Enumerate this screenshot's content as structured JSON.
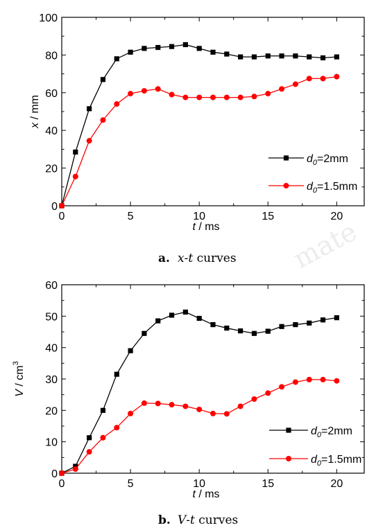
{
  "chart_data": [
    {
      "type": "line",
      "caption_letter": "a.",
      "caption_text": "x-t curves",
      "xlabel_var": "t",
      "xlabel_unit": " / ms",
      "ylabel_var": "x",
      "ylabel_unit": " / mm",
      "xlim": [
        0,
        22
      ],
      "ylim": [
        0,
        100
      ],
      "xticks": [
        0,
        5,
        10,
        15,
        20
      ],
      "yticks": [
        0,
        20,
        40,
        60,
        80,
        100
      ],
      "legend_placement": "lower-right",
      "series": [
        {
          "legend_sym": "d",
          "legend_sub": "0",
          "legend_rest": "=2mm",
          "color": "#000000",
          "marker": "square",
          "x": [
            0,
            1,
            2,
            3,
            4,
            5,
            6,
            7,
            8,
            9,
            10,
            11,
            12,
            13,
            14,
            15,
            16,
            17,
            18,
            19,
            20
          ],
          "y": [
            0,
            28.5,
            51.5,
            67,
            78,
            81.5,
            83.5,
            84,
            84.5,
            85.5,
            83.5,
            81.5,
            80.5,
            79,
            79,
            79.5,
            79.5,
            79.5,
            79,
            78.5,
            79
          ]
        },
        {
          "legend_sym": "d",
          "legend_sub": "0",
          "legend_rest": "=1.5mm",
          "color": "#ff0000",
          "marker": "circle",
          "x": [
            0,
            1,
            2,
            3,
            4,
            5,
            6,
            7,
            8,
            9,
            10,
            11,
            12,
            13,
            14,
            15,
            16,
            17,
            18,
            19,
            20
          ],
          "y": [
            0,
            15.5,
            34.5,
            45.5,
            54,
            59.5,
            61,
            62,
            59,
            57.5,
            57.5,
            57.5,
            57.5,
            57.5,
            58,
            59.5,
            62,
            64.5,
            67.5,
            67.5,
            68.5
          ]
        }
      ]
    },
    {
      "type": "line",
      "caption_letter": "b.",
      "caption_text": "V-t curves",
      "xlabel_var": "t",
      "xlabel_unit": " / ms",
      "ylabel_var": "V",
      "ylabel_unit": " / cm",
      "ylabel_sup": "3",
      "xlim": [
        0,
        22
      ],
      "ylim": [
        0,
        60
      ],
      "xticks": [
        0,
        5,
        10,
        15,
        20
      ],
      "yticks": [
        0,
        10,
        20,
        30,
        40,
        50,
        60
      ],
      "legend_placement": "lower-right",
      "series": [
        {
          "legend_sym": "d",
          "legend_sub": "0",
          "legend_rest": "=2mm",
          "color": "#000000",
          "marker": "square",
          "x": [
            0,
            1,
            2,
            3,
            4,
            5,
            6,
            7,
            8,
            9,
            10,
            11,
            12,
            13,
            14,
            15,
            16,
            17,
            18,
            19,
            20
          ],
          "y": [
            0,
            2.2,
            11.3,
            20,
            31.5,
            39,
            44.5,
            48.5,
            50.3,
            51.3,
            49.3,
            47.3,
            46.2,
            45.3,
            44.5,
            45.2,
            46.7,
            47.3,
            47.8,
            48.8,
            49.5
          ]
        },
        {
          "legend_sym": "d",
          "legend_sub": "0",
          "legend_rest": "=1.5mm",
          "color": "#ff0000",
          "marker": "circle",
          "x": [
            0,
            1,
            2,
            3,
            4,
            5,
            6,
            7,
            8,
            9,
            10,
            11,
            12,
            13,
            14,
            15,
            16,
            17,
            18,
            19,
            20
          ],
          "y": [
            0,
            1.3,
            6.8,
            11.3,
            14.5,
            19,
            22.3,
            22.2,
            21.8,
            21.3,
            20.3,
            19,
            18.9,
            21.3,
            23.6,
            25.5,
            27.5,
            29,
            29.8,
            29.8,
            29.4
          ]
        }
      ]
    }
  ],
  "watermark_text": "mate"
}
